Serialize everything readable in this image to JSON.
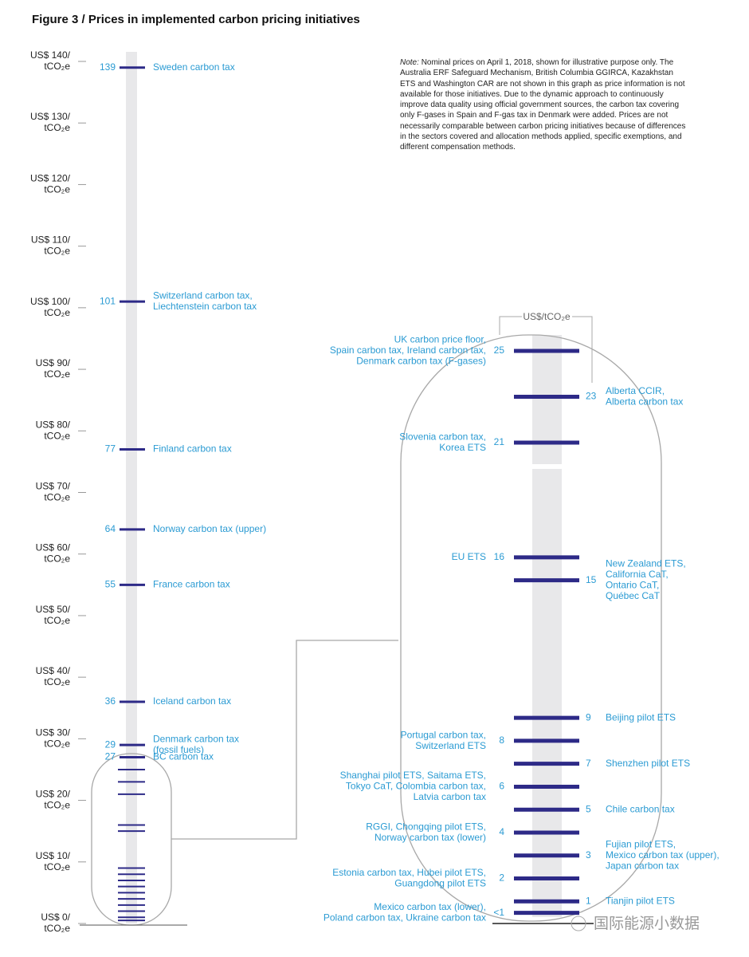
{
  "chart_data": [
    {
      "type": "scale",
      "title": "Figure 3 / Prices in implemented carbon pricing initiatives",
      "note_label": "Note:",
      "note": "Nominal prices on April 1, 2018, shown for illustrative purpose only. The Australia ERF Safeguard Mechanism, British Columbia GGIRCA, Kazakhstan ETS and Washington CAR are not shown in this graph as price information is not available for those initiatives. Due to the dynamic approach to continuously improve data quality using official government sources, the carbon tax covering only F-gases in Spain and F-gas tax in Denmark were added. Prices are not necessarily comparable between carbon pricing initiatives because of differences in the sectors covered and allocation methods applied, specific exemptions, and different compensation methods.",
      "watermark": "国际能源小数据",
      "ylim": [
        0,
        140
      ],
      "yticks": [
        {
          "value": 0,
          "label": "US$ 0/ tCO₂e"
        },
        {
          "value": 10,
          "label": "US$ 10/ tCO₂e"
        },
        {
          "value": 20,
          "label": "US$ 20/ tCO₂e"
        },
        {
          "value": 30,
          "label": "US$ 30/ tCO₂e"
        },
        {
          "value": 40,
          "label": "US$ 40/ tCO₂e"
        },
        {
          "value": 50,
          "label": "US$ 50/ tCO₂e"
        },
        {
          "value": 60,
          "label": "US$ 60/ tCO₂e"
        },
        {
          "value": 70,
          "label": "US$ 70/ tCO₂e"
        },
        {
          "value": 80,
          "label": "US$ 80/ tCO₂e"
        },
        {
          "value": 90,
          "label": "US$ 90/ tCO₂e"
        },
        {
          "value": 100,
          "label": "US$ 100/ tCO₂e"
        },
        {
          "value": 110,
          "label": "US$ 110/ tCO₂e"
        },
        {
          "value": 120,
          "label": "US$ 120/ tCO₂e"
        },
        {
          "value": 130,
          "label": "US$ 130/ tCO₂e"
        },
        {
          "value": 140,
          "label": "US$ 140/ tCO₂e"
        }
      ],
      "categories": [
        [
          "Sweden carbon tax"
        ],
        [
          "Switzerland carbon tax,",
          "Liechtenstein carbon tax"
        ],
        [
          "Finland carbon tax"
        ],
        [
          "Norway carbon tax (upper)"
        ],
        [
          "France carbon tax"
        ],
        [
          "Iceland carbon tax"
        ],
        [
          "Denmark carbon tax",
          "(fossil fuels)"
        ],
        [
          "BC carbon tax"
        ]
      ],
      "values": [
        139,
        101,
        77,
        64,
        55,
        36,
        29,
        27
      ],
      "color": "#2d2a87",
      "label_color": "#2b9bd3"
    },
    {
      "type": "scale",
      "axis_label": "US$/tCO₂e",
      "ylim": [
        0,
        25
      ],
      "categories": [
        [
          "UK carbon price floor,",
          "Spain carbon tax, Ireland carbon tax,",
          "Denmark carbon tax (F-gases)"
        ],
        [
          "Alberta CCIR,",
          "Alberta carbon tax"
        ],
        [
          "Slovenia carbon tax,",
          "Korea ETS"
        ],
        [
          "EU ETS"
        ],
        [
          "New Zealand ETS,",
          "California CaT,",
          "Ontario CaT,",
          "Québec CaT"
        ],
        [
          "Beijing pilot ETS"
        ],
        [
          "Portugal carbon tax,",
          "Switzerland ETS"
        ],
        [
          "Shenzhen pilot ETS"
        ],
        [
          "Shanghai pilot ETS, Saitama ETS,",
          "Tokyo CaT, Colombia carbon tax,",
          "Latvia carbon tax"
        ],
        [
          "Chile carbon tax"
        ],
        [
          "RGGI, Chongqing pilot ETS,",
          "Norway carbon tax (lower)"
        ],
        [
          "Fujian pilot ETS,",
          "Mexico carbon tax (upper),",
          "Japan carbon tax"
        ],
        [
          "Estonia carbon tax, Hubei pilot ETS,",
          "Guangdong pilot ETS"
        ],
        [
          "Tianjin pilot ETS"
        ],
        [
          "Mexico carbon tax (lower),",
          "Poland carbon tax, Ukraine carbon tax"
        ]
      ],
      "values": [
        25,
        23,
        21,
        16,
        15,
        9,
        8,
        7,
        6,
        5,
        4,
        3,
        2,
        1,
        0.5
      ],
      "value_labels": [
        "25",
        "23",
        "21",
        "16",
        "15",
        "9",
        "8",
        "7",
        "6",
        "5",
        "4",
        "3",
        "2",
        "1",
        "<1"
      ],
      "label_side": [
        "left",
        "right",
        "left",
        "left",
        "right",
        "right",
        "left",
        "right",
        "left",
        "right",
        "left",
        "right",
        "left",
        "right",
        "left"
      ],
      "color": "#2d2a87",
      "label_color": "#2b9bd3"
    }
  ]
}
